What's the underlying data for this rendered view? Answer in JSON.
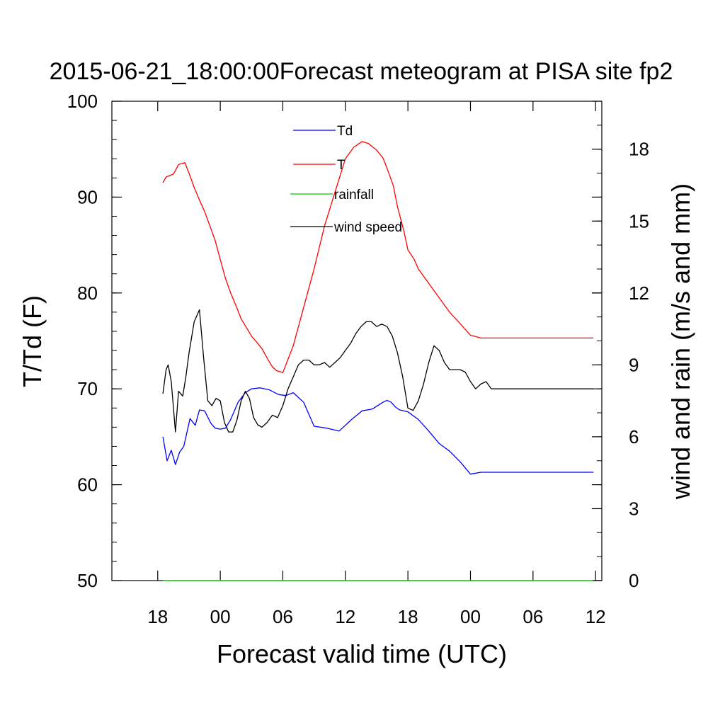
{
  "chart_data": {
    "type": "line",
    "title": "2015-06-21_18:00:00Forecast meteogram at PISA site fp2",
    "xlabel": "Forecast valid time (UTC)",
    "ylabel_left": "T/Td (F)",
    "ylabel_right": "wind and rain (m/s and mm)",
    "x_unit": "hours since 2015-06-21 18:00 UTC",
    "xlim": [
      -4.4,
      42.6
    ],
    "xticks": [
      0,
      6,
      12,
      18,
      24,
      30,
      36,
      42
    ],
    "xtick_labels": [
      "18",
      "00",
      "06",
      "12",
      "18",
      "00",
      "06",
      "12"
    ],
    "ylim_left": [
      50,
      100
    ],
    "yticks_left": [
      50,
      60,
      70,
      80,
      90,
      100
    ],
    "ytick_labels_left": [
      "50",
      "60",
      "70",
      "80",
      "90",
      "100"
    ],
    "ylim_right": [
      0,
      20
    ],
    "yticks_right": [
      0,
      3,
      6,
      9,
      12,
      15,
      18
    ],
    "ytick_labels_right": [
      "0",
      "3",
      "6",
      "9",
      "12",
      "15",
      "18"
    ],
    "legend_position": "top-center",
    "series": [
      {
        "name": "Td",
        "axis": "left",
        "color": "#0000ff",
        "x": [
          0.5,
          0.9,
          1.3,
          1.7,
          2.1,
          2.5,
          3.1,
          3.6,
          4.0,
          4.5,
          5.1,
          5.5,
          6.0,
          6.5,
          7.0,
          7.7,
          8.4,
          9.0,
          9.8,
          10.7,
          11.6,
          12.3,
          13.0,
          14.0,
          15.0,
          16.2,
          17.4,
          18.6,
          19.6,
          20.6,
          21.6,
          22.0,
          22.4,
          22.8,
          23.2,
          23.6,
          24.0,
          25.0,
          26.0,
          27.0,
          28.0,
          29.0,
          30.0,
          31.0,
          32.0,
          33.0,
          34.0,
          35.0,
          36.0,
          37.0,
          38.0,
          39.0,
          40.0,
          41.0,
          41.5,
          41.8
        ],
        "y": [
          65.0,
          62.5,
          63.6,
          62.1,
          63.4,
          64.0,
          66.9,
          66.2,
          67.8,
          67.7,
          66.4,
          65.9,
          65.8,
          65.9,
          66.8,
          68.6,
          69.6,
          70.0,
          70.1,
          69.9,
          69.4,
          69.3,
          69.6,
          68.6,
          66.1,
          65.9,
          65.6,
          66.8,
          67.7,
          67.9,
          68.6,
          68.8,
          68.6,
          68.1,
          67.8,
          67.7,
          67.6,
          66.8,
          65.6,
          64.3,
          63.5,
          62.4,
          61.1,
          61.3,
          61.3,
          61.3,
          61.3,
          61.3,
          61.3,
          61.3,
          61.3,
          61.3,
          61.3,
          61.3,
          61.3,
          61.3
        ]
      },
      {
        "name": "T",
        "axis": "left",
        "color": "#ff0000",
        "x": [
          0.5,
          0.8,
          1.5,
          2.0,
          2.6,
          3.0,
          3.5,
          4.0,
          4.5,
          5.0,
          5.5,
          6.0,
          6.5,
          7.0,
          7.5,
          8.0,
          9.0,
          10.0,
          10.5,
          11.0,
          11.4,
          12.0,
          13.0,
          14.0,
          15.0,
          16.0,
          17.0,
          18.0,
          18.8,
          19.6,
          20.2,
          21.0,
          21.6,
          22.0,
          22.6,
          23.0,
          23.6,
          24.0,
          24.6,
          25.0,
          26.0,
          27.0,
          28.0,
          29.0,
          30.0,
          31.0,
          32.0,
          33.0,
          34.0,
          35.0,
          36.0,
          37.0,
          38.0,
          39.0,
          40.0,
          41.0,
          41.5,
          41.8
        ],
        "y": [
          91.5,
          92.1,
          92.4,
          93.4,
          93.6,
          92.5,
          91.0,
          89.7,
          88.5,
          87.0,
          85.5,
          83.5,
          81.5,
          80.0,
          78.7,
          77.3,
          75.5,
          74.2,
          73.2,
          72.3,
          71.9,
          71.7,
          74.5,
          78.5,
          82.5,
          87.0,
          90.5,
          94.0,
          95.2,
          95.8,
          95.6,
          94.9,
          94.1,
          93.0,
          91.2,
          89.0,
          86.5,
          84.5,
          83.5,
          82.5,
          81.0,
          79.5,
          78.0,
          76.8,
          75.6,
          75.3,
          75.3,
          75.3,
          75.3,
          75.3,
          75.3,
          75.3,
          75.3,
          75.3,
          75.3,
          75.3,
          75.3,
          75.3
        ]
      },
      {
        "name": "rainfall",
        "axis": "right",
        "color": "#00cc00",
        "x": [
          0.5,
          41.8
        ],
        "y": [
          0,
          0
        ]
      },
      {
        "name": "wind speed",
        "axis": "right",
        "color": "#000000",
        "x": [
          0.5,
          0.8,
          1.0,
          1.3,
          1.7,
          2.0,
          2.4,
          2.7,
          3.0,
          3.5,
          4.0,
          4.4,
          4.8,
          5.2,
          5.6,
          6.0,
          6.4,
          6.8,
          7.2,
          7.6,
          8.0,
          8.4,
          8.8,
          9.2,
          9.6,
          10.0,
          10.5,
          11.0,
          11.5,
          12.0,
          12.5,
          13.0,
          13.5,
          14.0,
          14.5,
          15.0,
          15.5,
          16.0,
          16.5,
          17.0,
          17.5,
          18.0,
          18.5,
          19.0,
          19.5,
          20.0,
          20.5,
          21.0,
          21.5,
          22.0,
          22.5,
          23.0,
          23.5,
          24.0,
          24.5,
          25.0,
          25.5,
          26.0,
          26.5,
          27.0,
          27.5,
          28.0,
          28.5,
          29.0,
          29.5,
          30.0,
          30.5,
          31.0,
          31.5,
          32.0,
          32.5,
          33.0,
          33.5,
          34.0,
          34.5,
          35.0,
          35.5,
          36.0,
          36.5,
          37.0,
          37.5,
          38.0,
          38.5,
          39.0,
          39.5,
          40.0,
          40.5,
          41.0,
          41.5,
          41.8
        ],
        "y": [
          7.8,
          8.8,
          9.0,
          8.3,
          6.2,
          7.9,
          7.7,
          8.5,
          9.5,
          10.8,
          11.3,
          9.3,
          7.5,
          7.3,
          7.6,
          7.5,
          6.6,
          6.2,
          6.2,
          6.7,
          7.5,
          7.9,
          7.6,
          6.8,
          6.5,
          6.4,
          6.6,
          6.9,
          6.8,
          7.3,
          8.0,
          8.5,
          9.0,
          9.2,
          9.2,
          9.0,
          9.0,
          9.1,
          8.9,
          9.1,
          9.3,
          9.6,
          9.9,
          10.3,
          10.6,
          10.8,
          10.8,
          10.6,
          10.7,
          10.6,
          10.2,
          9.5,
          8.5,
          7.2,
          7.1,
          7.5,
          8.2,
          9.1,
          9.8,
          9.6,
          9.1,
          8.8,
          8.8,
          8.8,
          8.7,
          8.3,
          8.0,
          8.2,
          8.3,
          8.0,
          8.0,
          8.0,
          8.0,
          8.0,
          8.0,
          8.0,
          8.0,
          8.0,
          8.0,
          8.0,
          8.0,
          8.0,
          8.0,
          8.0,
          8.0,
          8.0,
          8.0,
          8.0,
          8.0,
          8.0
        ]
      }
    ]
  }
}
